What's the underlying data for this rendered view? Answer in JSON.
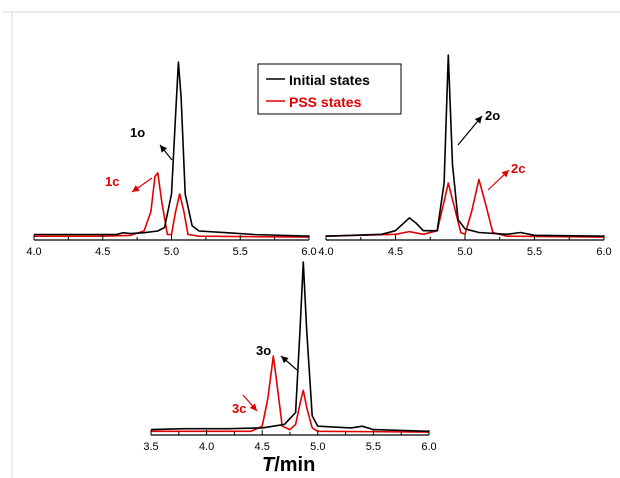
{
  "figure": {
    "x_axis_label_italic": "T",
    "x_axis_label_rest": "/min"
  },
  "legend": [
    {
      "label": "Initial states",
      "color": "#000000"
    },
    {
      "label": "PSS states",
      "color": "#e00000"
    }
  ],
  "chart_data": [
    {
      "type": "line",
      "panel": "top-left",
      "xlim": [
        4.0,
        6.0
      ],
      "x_ticks": [
        "4.0",
        "4.5",
        "5.0",
        "5.5",
        "6.0"
      ],
      "series": [
        {
          "name": "Initial states",
          "color": "#000000",
          "points": [
            [
              4.0,
              0.02
            ],
            [
              4.3,
              0.02
            ],
            [
              4.6,
              0.02
            ],
            [
              4.65,
              0.03
            ],
            [
              4.7,
              0.025
            ],
            [
              4.8,
              0.03
            ],
            [
              4.9,
              0.04
            ],
            [
              4.95,
              0.06
            ],
            [
              5.0,
              0.25
            ],
            [
              5.03,
              0.7
            ],
            [
              5.05,
              1.0
            ],
            [
              5.07,
              0.8
            ],
            [
              5.1,
              0.25
            ],
            [
              5.15,
              0.07
            ],
            [
              5.2,
              0.04
            ],
            [
              5.4,
              0.03
            ],
            [
              5.6,
              0.02
            ],
            [
              6.0,
              0.01
            ]
          ]
        },
        {
          "name": "PSS states",
          "color": "#e00000",
          "points": [
            [
              4.0,
              0.01
            ],
            [
              4.5,
              0.01
            ],
            [
              4.7,
              0.015
            ],
            [
              4.8,
              0.04
            ],
            [
              4.85,
              0.15
            ],
            [
              4.88,
              0.35
            ],
            [
              4.9,
              0.37
            ],
            [
              4.93,
              0.2
            ],
            [
              4.97,
              0.02
            ],
            [
              5.0,
              0.02
            ],
            [
              5.03,
              0.15
            ],
            [
              5.06,
              0.25
            ],
            [
              5.09,
              0.15
            ],
            [
              5.12,
              0.02
            ],
            [
              5.2,
              0.01
            ],
            [
              6.0,
              0.005
            ]
          ]
        }
      ],
      "annotations": [
        {
          "text": "1o",
          "color": "#000000",
          "target": "Initial states peak"
        },
        {
          "text": "1c",
          "color": "#e00000",
          "target": "PSS states peak"
        }
      ]
    },
    {
      "type": "line",
      "panel": "top-right",
      "xlim": [
        4.0,
        6.0
      ],
      "x_ticks": [
        "4.0",
        "4.5",
        "5.0",
        "5.5",
        "6.0"
      ],
      "series": [
        {
          "name": "Initial states",
          "color": "#000000",
          "points": [
            [
              4.0,
              0.01
            ],
            [
              4.4,
              0.02
            ],
            [
              4.5,
              0.04
            ],
            [
              4.6,
              0.11
            ],
            [
              4.65,
              0.08
            ],
            [
              4.7,
              0.04
            ],
            [
              4.8,
              0.04
            ],
            [
              4.85,
              0.3
            ],
            [
              4.88,
              1.0
            ],
            [
              4.91,
              0.4
            ],
            [
              4.95,
              0.1
            ],
            [
              5.0,
              0.05
            ],
            [
              5.1,
              0.03
            ],
            [
              5.3,
              0.02
            ],
            [
              5.4,
              0.03
            ],
            [
              5.5,
              0.015
            ],
            [
              6.0,
              0.01
            ]
          ]
        },
        {
          "name": "PSS states",
          "color": "#e00000",
          "points": [
            [
              4.0,
              0.01
            ],
            [
              4.5,
              0.02
            ],
            [
              4.6,
              0.035
            ],
            [
              4.7,
              0.02
            ],
            [
              4.8,
              0.04
            ],
            [
              4.85,
              0.2
            ],
            [
              4.88,
              0.3
            ],
            [
              4.92,
              0.18
            ],
            [
              4.97,
              0.03
            ],
            [
              5.0,
              0.02
            ],
            [
              5.05,
              0.15
            ],
            [
              5.1,
              0.32
            ],
            [
              5.15,
              0.18
            ],
            [
              5.2,
              0.03
            ],
            [
              5.3,
              0.01
            ],
            [
              6.0,
              0.005
            ]
          ]
        }
      ],
      "annotations": [
        {
          "text": "2o",
          "color": "#000000",
          "target": "Initial states peak"
        },
        {
          "text": "2c",
          "color": "#e00000",
          "target": "PSS states peak"
        }
      ]
    },
    {
      "type": "line",
      "panel": "bottom",
      "xlim": [
        3.5,
        6.0
      ],
      "x_ticks": [
        "3.5",
        "4.0",
        "4.5",
        "5.0",
        "5.5",
        "6.0"
      ],
      "series": [
        {
          "name": "Initial states",
          "color": "#000000",
          "points": [
            [
              3.5,
              0.02
            ],
            [
              3.8,
              0.025
            ],
            [
              4.2,
              0.025
            ],
            [
              4.5,
              0.03
            ],
            [
              4.6,
              0.04
            ],
            [
              4.7,
              0.05
            ],
            [
              4.8,
              0.12
            ],
            [
              4.84,
              0.6
            ],
            [
              4.87,
              1.0
            ],
            [
              4.9,
              0.6
            ],
            [
              4.95,
              0.1
            ],
            [
              5.0,
              0.04
            ],
            [
              5.3,
              0.03
            ],
            [
              5.4,
              0.04
            ],
            [
              5.5,
              0.02
            ],
            [
              6.0,
              0.01
            ]
          ]
        },
        {
          "name": "PSS states",
          "color": "#e00000",
          "points": [
            [
              3.5,
              0.01
            ],
            [
              4.4,
              0.01
            ],
            [
              4.5,
              0.04
            ],
            [
              4.55,
              0.2
            ],
            [
              4.6,
              0.45
            ],
            [
              4.63,
              0.3
            ],
            [
              4.68,
              0.04
            ],
            [
              4.75,
              0.02
            ],
            [
              4.8,
              0.05
            ],
            [
              4.85,
              0.2
            ],
            [
              4.87,
              0.25
            ],
            [
              4.9,
              0.15
            ],
            [
              4.95,
              0.03
            ],
            [
              5.0,
              0.01
            ],
            [
              6.0,
              0.005
            ]
          ]
        }
      ],
      "annotations": [
        {
          "text": "3o",
          "color": "#000000",
          "target": "Initial states peak"
        },
        {
          "text": "3c",
          "color": "#e00000",
          "target": "PSS states peak"
        }
      ]
    }
  ]
}
